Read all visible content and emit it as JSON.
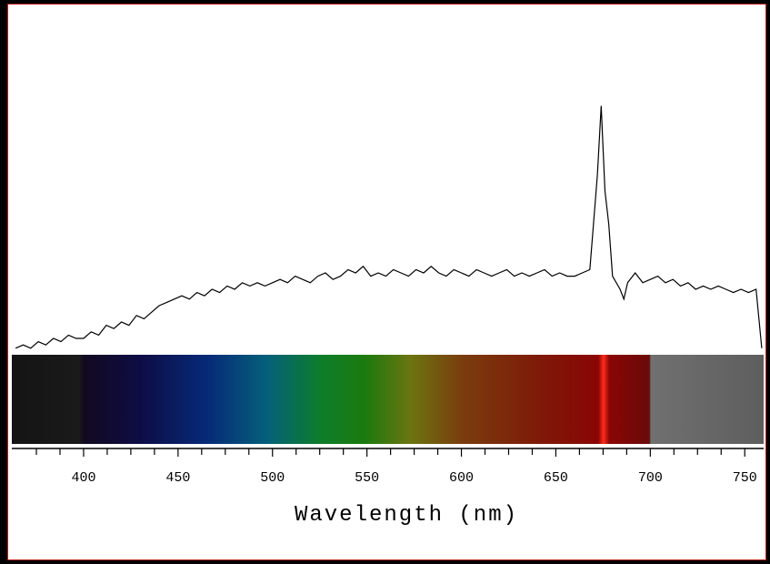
{
  "chart_data": {
    "type": "line",
    "x_label": "Wavelength (nm)",
    "x": [
      364,
      368,
      372,
      376,
      380,
      384,
      388,
      392,
      396,
      400,
      404,
      408,
      412,
      416,
      420,
      424,
      428,
      432,
      436,
      440,
      444,
      448,
      452,
      456,
      460,
      464,
      468,
      472,
      476,
      480,
      484,
      488,
      492,
      496,
      500,
      504,
      508,
      512,
      516,
      520,
      524,
      528,
      532,
      536,
      540,
      544,
      548,
      552,
      556,
      560,
      564,
      568,
      572,
      576,
      580,
      584,
      588,
      592,
      596,
      600,
      604,
      608,
      612,
      616,
      620,
      624,
      628,
      632,
      636,
      640,
      644,
      648,
      652,
      656,
      660,
      664,
      668,
      672,
      674,
      676,
      678,
      680,
      684,
      686,
      688,
      692,
      696,
      700,
      704,
      708,
      712,
      716,
      720,
      724,
      728,
      732,
      736,
      740,
      744,
      748,
      752,
      756,
      759
    ],
    "values": [
      2,
      3,
      2,
      4,
      3,
      5,
      4,
      6,
      5,
      5,
      7,
      6,
      9,
      8,
      10,
      9,
      12,
      11,
      13,
      15,
      16,
      17,
      18,
      17,
      19,
      18,
      20,
      19,
      21,
      20,
      22,
      21,
      22,
      21,
      22,
      23,
      22,
      24,
      23,
      22,
      24,
      25,
      23,
      24,
      26,
      25,
      27,
      24,
      25,
      24,
      26,
      25,
      24,
      26,
      25,
      27,
      25,
      24,
      26,
      25,
      24,
      26,
      25,
      24,
      25,
      26,
      24,
      25,
      24,
      25,
      26,
      24,
      25,
      24,
      24,
      25,
      26,
      55,
      76,
      50,
      40,
      24,
      20,
      17,
      22,
      25,
      22,
      23,
      24,
      22,
      23,
      21,
      22,
      20,
      21,
      20,
      21,
      20,
      19,
      20,
      19,
      20,
      2
    ],
    "color": "#000000",
    "xlim": [
      362,
      760
    ],
    "ylim": [
      0,
      100
    ],
    "xticks": [
      400,
      450,
      500,
      550,
      600,
      650,
      700,
      750
    ],
    "minor_xticks": [
      375,
      387.5,
      412.5,
      425,
      437.5,
      462.5,
      475,
      487.5,
      512.5,
      525,
      537.5,
      562.5,
      575,
      587.5,
      612.5,
      625,
      637.5,
      662.5,
      675,
      687.5,
      712.5,
      725,
      737.5
    ]
  }
}
